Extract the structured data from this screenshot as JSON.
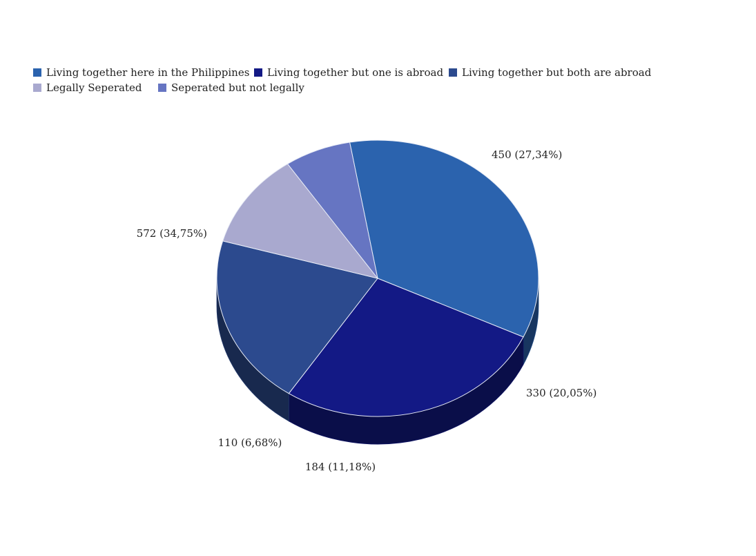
{
  "chart_data": {
    "type": "pie",
    "title": "",
    "legend_position": "top-left",
    "slices": [
      {
        "name": "Living together here in the Philippines",
        "value": 572,
        "label": "572 (34,75%)",
        "color": "#2b63ae"
      },
      {
        "name": "Living together but one is abroad",
        "value": 450,
        "label": "450 (27,34%)",
        "color": "#131985"
      },
      {
        "name": "Living together but both are abroad",
        "value": 330,
        "label": "330 (20,05%)",
        "color": "#2c4a8e"
      },
      {
        "name": "Legally Seperated",
        "value": 184,
        "label": "184 (11,18%)",
        "color": "#a9a9cf"
      },
      {
        "name": "Seperated but not legally",
        "value": 110,
        "label": "110 (6,68%)",
        "color": "#6675c2"
      }
    ]
  }
}
